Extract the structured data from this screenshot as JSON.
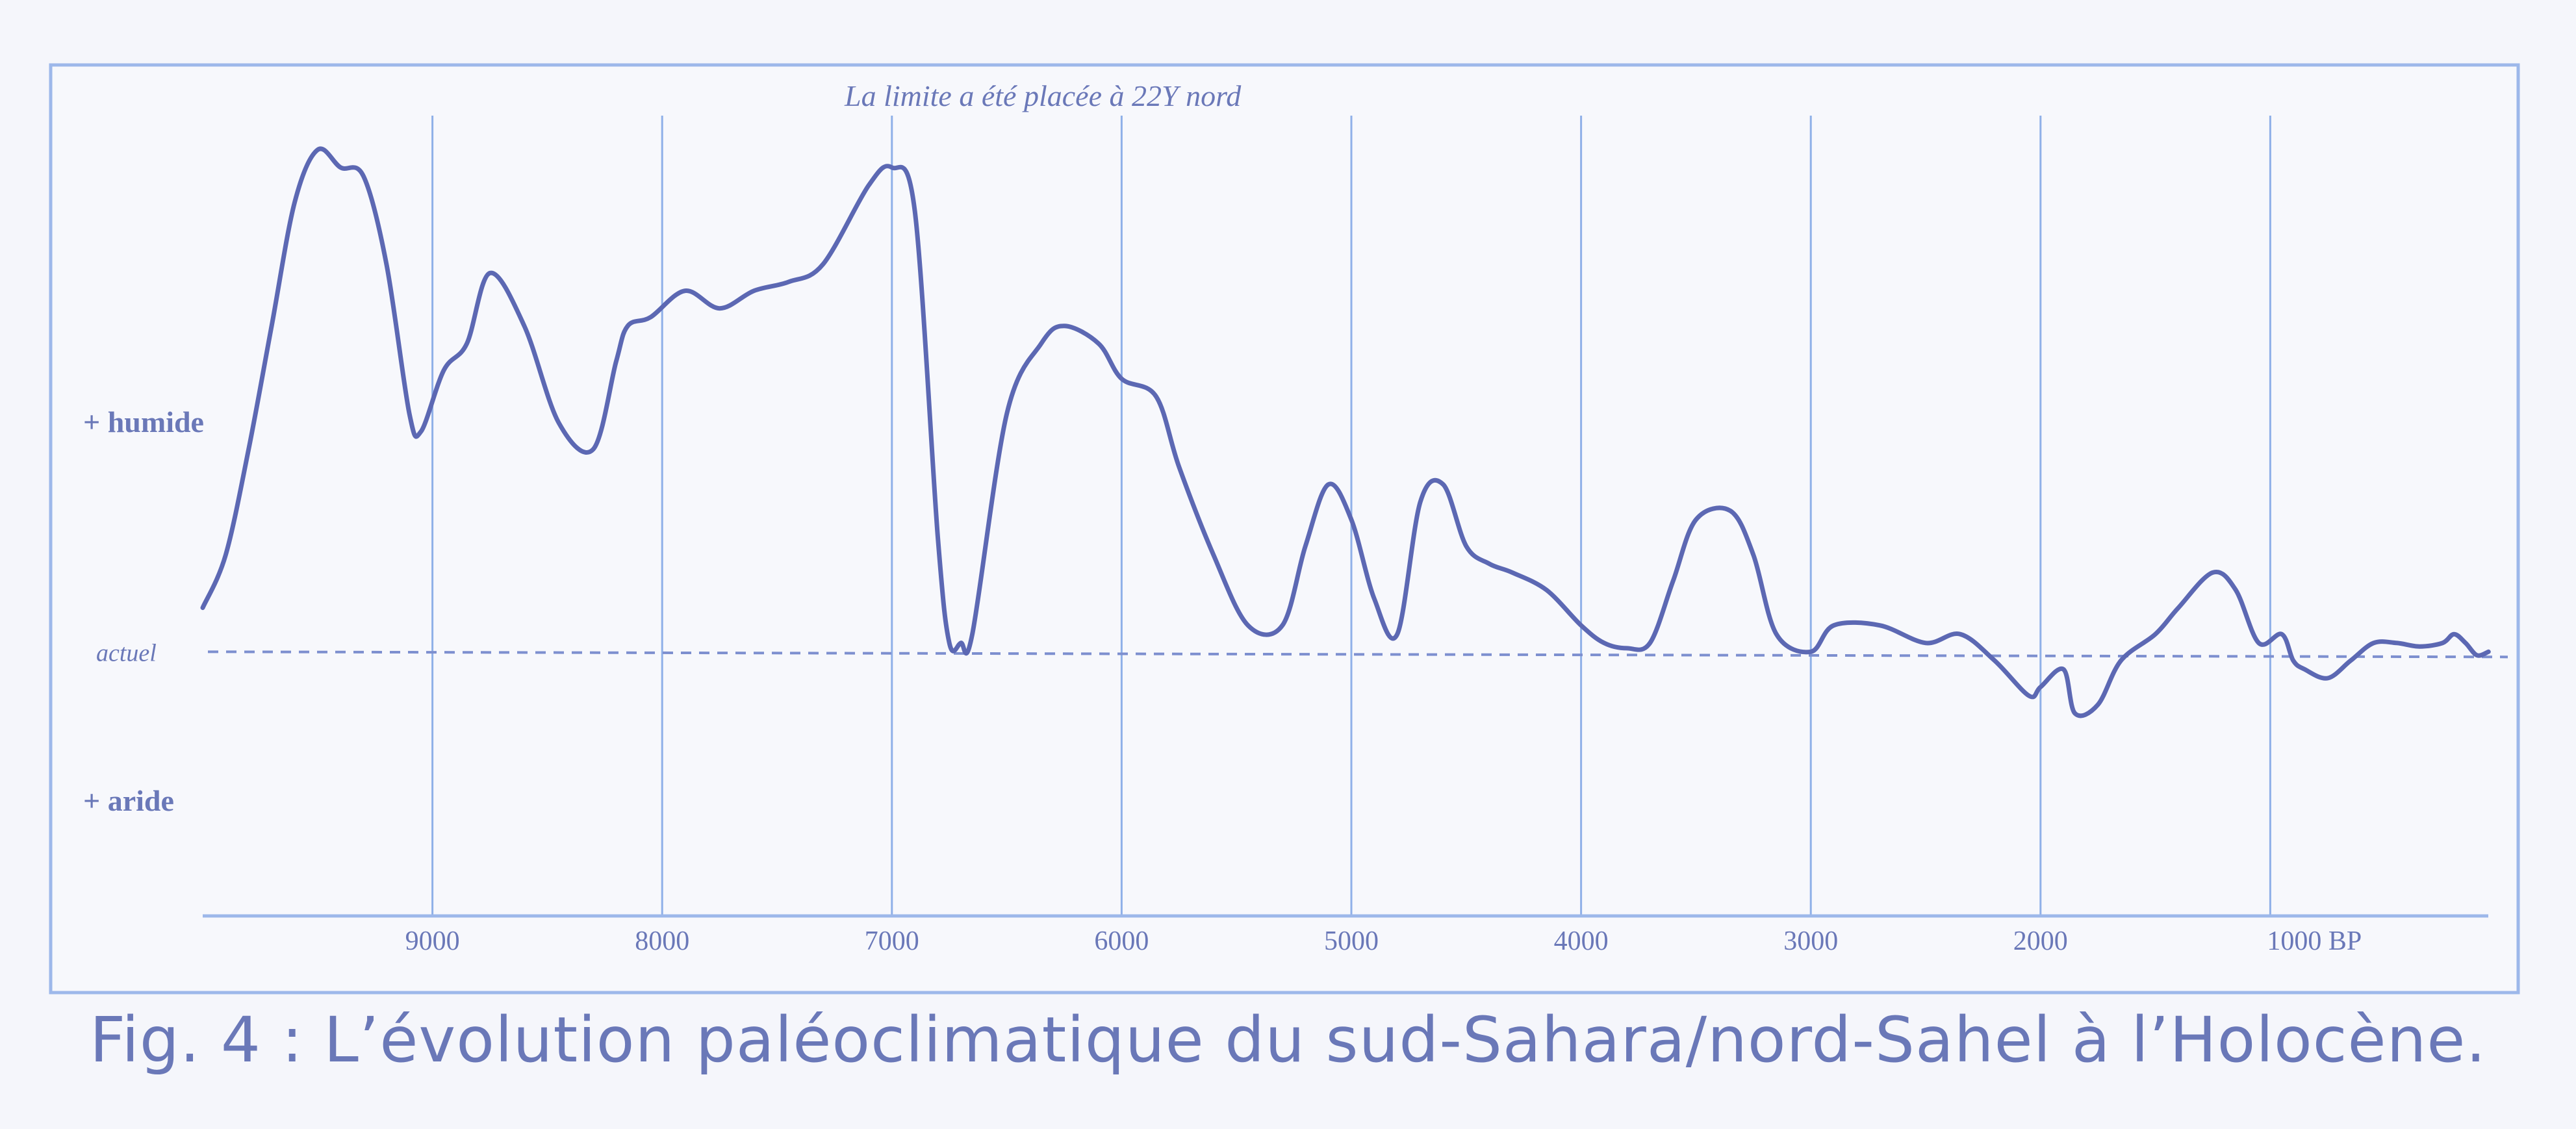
{
  "chart_data": {
    "type": "line",
    "subtitle": "La limite a été placée  à 22Y nord",
    "title": "Fig. 4 : L’évolution paléoclimatique du sud-Sahara/nord-Sahel à l’Holocène.",
    "xlabel": "",
    "ylabel": "",
    "x_reversed": true,
    "xlim": [
      10000,
      0
    ],
    "ylim": [
      -1.5,
      3
    ],
    "y_category_labels": [
      {
        "label": "+ humide",
        "y": 1.3
      },
      {
        "label": "actuel",
        "y": 0
      },
      {
        "label": "+ aride",
        "y": -0.85
      }
    ],
    "x_ticks": [
      {
        "value": 9000,
        "label": "9000"
      },
      {
        "value": 8000,
        "label": "8000"
      },
      {
        "value": 7000,
        "label": "7000"
      },
      {
        "value": 6000,
        "label": "6000"
      },
      {
        "value": 5000,
        "label": "5000"
      },
      {
        "value": 4000,
        "label": "4000"
      },
      {
        "value": 3000,
        "label": "3000"
      },
      {
        "value": 2000,
        "label": "2000"
      },
      {
        "value": 1000,
        "label": "1000 BP"
      }
    ],
    "reference_line": {
      "y": 0,
      "style": "dashed"
    },
    "grid": "vertical",
    "colors": {
      "line": "#5c68b3",
      "grid": "#8fb0e8",
      "text": "#6a78b8",
      "caption": "#6a78b8"
    },
    "series": [
      {
        "x": [
          10000,
          9900,
          9800,
          9700,
          9600,
          9500,
          9400,
          9300,
          9200,
          9100,
          9050,
          8950,
          8850,
          8750,
          8600,
          8450,
          8300,
          8200,
          8150,
          8050,
          7900,
          7750,
          7600,
          7450,
          7300,
          7100,
          7000,
          6900,
          6800,
          6750,
          6700,
          6650,
          6500,
          6350,
          6250,
          6100,
          6000,
          5850,
          5750,
          5600,
          5450,
          5300,
          5200,
          5100,
          5000,
          4900,
          4800,
          4700,
          4600,
          4500,
          4400,
          4300,
          4150,
          4000,
          3900,
          3800,
          3700,
          3600,
          3500,
          3350,
          3250,
          3150,
          3000,
          2900,
          2700,
          2500,
          2350,
          2200,
          2050,
          2000,
          1900,
          1850,
          1750,
          1650,
          1500,
          1400,
          1250,
          1150,
          1050,
          950,
          900,
          850,
          750,
          650,
          550,
          450,
          350,
          250,
          200,
          150,
          100,
          50
        ],
        "y": [
          0.25,
          0.55,
          1.15,
          1.85,
          2.55,
          2.85,
          2.75,
          2.7,
          2.2,
          1.35,
          1.25,
          1.6,
          1.75,
          2.15,
          1.85,
          1.3,
          1.15,
          1.65,
          1.85,
          1.9,
          2.05,
          1.95,
          2.05,
          2.1,
          2.2,
          2.65,
          2.75,
          2.5,
          0.65,
          0.05,
          0.05,
          0.1,
          1.35,
          1.75,
          1.85,
          1.75,
          1.55,
          1.45,
          1.05,
          0.55,
          0.15,
          0.15,
          0.6,
          0.95,
          0.75,
          0.3,
          0.1,
          0.85,
          0.95,
          0.6,
          0.5,
          0.45,
          0.35,
          0.15,
          0.05,
          0.02,
          0.05,
          0.4,
          0.75,
          0.8,
          0.55,
          0.1,
          0.0,
          0.15,
          0.15,
          0.05,
          0.1,
          -0.05,
          -0.25,
          -0.2,
          -0.1,
          -0.35,
          -0.3,
          -0.05,
          0.1,
          0.25,
          0.45,
          0.35,
          0.05,
          0.1,
          -0.05,
          -0.1,
          -0.15,
          -0.05,
          0.05,
          0.05,
          0.03,
          0.05,
          0.1,
          0.05,
          -0.02,
          0.0
        ]
      }
    ]
  }
}
